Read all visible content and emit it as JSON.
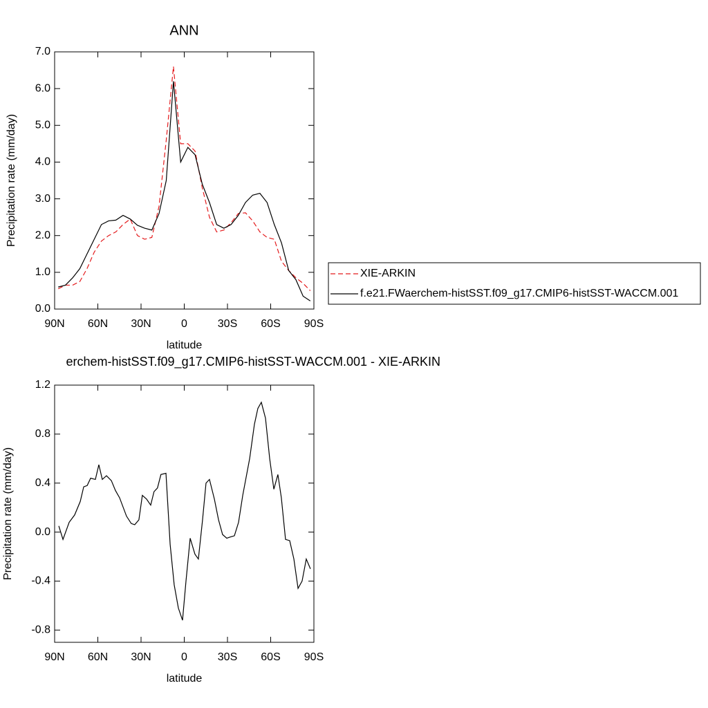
{
  "chart_data": [
    {
      "type": "line",
      "title": "ANN",
      "ylabel": "Precipitation rate (mm/day)",
      "xlabel": "latitude",
      "xlim": [
        90,
        -90
      ],
      "ylim": [
        0,
        7
      ],
      "xticks": [
        {
          "value": 90,
          "label": "90N"
        },
        {
          "value": 60,
          "label": "60N"
        },
        {
          "value": 30,
          "label": "30N"
        },
        0,
        {
          "value": -30,
          "label": "30S"
        },
        {
          "value": -60,
          "label": "60S"
        },
        {
          "value": -90,
          "label": "90S"
        }
      ],
      "yticks": [
        {
          "value": 0,
          "label": "0.0"
        },
        {
          "value": 1,
          "label": "1.0"
        },
        {
          "value": 2,
          "label": "2.0"
        },
        {
          "value": 3,
          "label": "3.0"
        },
        {
          "value": 4,
          "label": "4.0"
        },
        {
          "value": 5,
          "label": "5.0"
        },
        {
          "value": 6,
          "label": "6.0"
        },
        {
          "value": 7,
          "label": "7.0"
        }
      ],
      "legend": "right",
      "x": [
        87.5,
        82.5,
        77.5,
        72.5,
        67.5,
        62.5,
        57.5,
        52.5,
        47.5,
        42.5,
        37.5,
        32.5,
        27.5,
        22.5,
        17.5,
        12.5,
        7.5,
        2.5,
        -2.5,
        -7.5,
        -12.5,
        -17.5,
        -22.5,
        -27.5,
        -32.5,
        -37.5,
        -42.5,
        -47.5,
        -52.5,
        -57.5,
        -62.5,
        -67.5,
        -72.5,
        -77.5,
        -82.5,
        -87.5
      ],
      "series": [
        {
          "name": "XIE-ARKIN",
          "color": "#e41a1c",
          "style": "dashed",
          "values": [
            0.55,
            0.65,
            0.65,
            0.75,
            1.1,
            1.55,
            1.85,
            2.0,
            2.1,
            2.3,
            2.45,
            2.0,
            1.9,
            1.95,
            2.8,
            4.6,
            6.6,
            4.5,
            4.5,
            4.3,
            3.3,
            2.5,
            2.1,
            2.15,
            2.35,
            2.6,
            2.62,
            2.4,
            2.1,
            1.95,
            1.9,
            1.3,
            1.05,
            0.85,
            0.7,
            0.5
          ]
        },
        {
          "name": "f.e21.FWaerchem-histSST.f09_g17.CMIP6-histSST-WACCM.001",
          "color": "#000000",
          "style": "solid",
          "values": [
            0.6,
            0.65,
            0.85,
            1.1,
            1.5,
            1.9,
            2.3,
            2.4,
            2.42,
            2.55,
            2.45,
            2.28,
            2.2,
            2.15,
            2.6,
            3.5,
            6.2,
            4.0,
            4.4,
            4.2,
            3.4,
            2.9,
            2.3,
            2.2,
            2.3,
            2.55,
            2.9,
            3.1,
            3.15,
            2.9,
            2.3,
            1.8,
            1.05,
            0.8,
            0.35,
            0.22
          ]
        }
      ]
    },
    {
      "type": "line",
      "title": "erchem-histSST.f09_g17.CMIP6-histSST-WACCM.001 - XIE-ARKIN",
      "ylabel": "Precipitation rate (mm/day)",
      "xlabel": "latitude",
      "xlim": [
        90,
        -90
      ],
      "ylim": [
        -0.9,
        1.2
      ],
      "xticks": [
        {
          "value": 90,
          "label": "90N"
        },
        {
          "value": 60,
          "label": "60N"
        },
        {
          "value": 30,
          "label": "30N"
        },
        0,
        {
          "value": -30,
          "label": "30S"
        },
        {
          "value": -60,
          "label": "60S"
        },
        {
          "value": -90,
          "label": "90S"
        }
      ],
      "yticks": [
        -0.8,
        -0.4,
        {
          "value": 0,
          "label": "0.0"
        },
        0.4,
        0.8,
        1.2
      ],
      "x": [
        87.1,
        84.2,
        79.9,
        76.1,
        72.2,
        69.8,
        67.4,
        65.0,
        61.7,
        59.3,
        56.9,
        54.0,
        50.6,
        47.8,
        44.9,
        40.1,
        36.8,
        34.4,
        31.5,
        29.1,
        26.2,
        23.3,
        21.0,
        18.6,
        16.2,
        12.7,
        9.8,
        7.0,
        4.1,
        1.2,
        -1.2,
        -4.1,
        -7.4,
        -9.8,
        -12.7,
        -15.1,
        -17.5,
        -20.9,
        -23.8,
        -26.6,
        -29.5,
        -31.9,
        -34.8,
        -37.7,
        -40.6,
        -45.4,
        -48.7,
        -51.1,
        -53.5,
        -56.4,
        -59.3,
        -62.2,
        -65.0,
        -67.4,
        -70.3,
        -73.2,
        -76.1,
        -79.0,
        -81.8,
        -84.7,
        -87.6
      ],
      "series": [
        {
          "color": "#000000",
          "style": "solid",
          "values": [
            0.05,
            -0.06,
            0.08,
            0.14,
            0.25,
            0.37,
            0.38,
            0.44,
            0.43,
            0.55,
            0.43,
            0.46,
            0.42,
            0.34,
            0.28,
            0.13,
            0.07,
            0.06,
            0.1,
            0.3,
            0.27,
            0.22,
            0.33,
            0.36,
            0.47,
            0.48,
            -0.1,
            -0.43,
            -0.62,
            -0.72,
            -0.4,
            -0.05,
            -0.18,
            -0.22,
            0.1,
            0.4,
            0.43,
            0.27,
            0.1,
            -0.02,
            -0.05,
            -0.04,
            -0.03,
            0.08,
            0.3,
            0.6,
            0.88,
            1.01,
            1.06,
            0.93,
            0.6,
            0.35,
            0.47,
            0.28,
            -0.06,
            -0.07,
            -0.22,
            -0.46,
            -0.4,
            -0.22,
            -0.3
          ]
        }
      ]
    }
  ]
}
